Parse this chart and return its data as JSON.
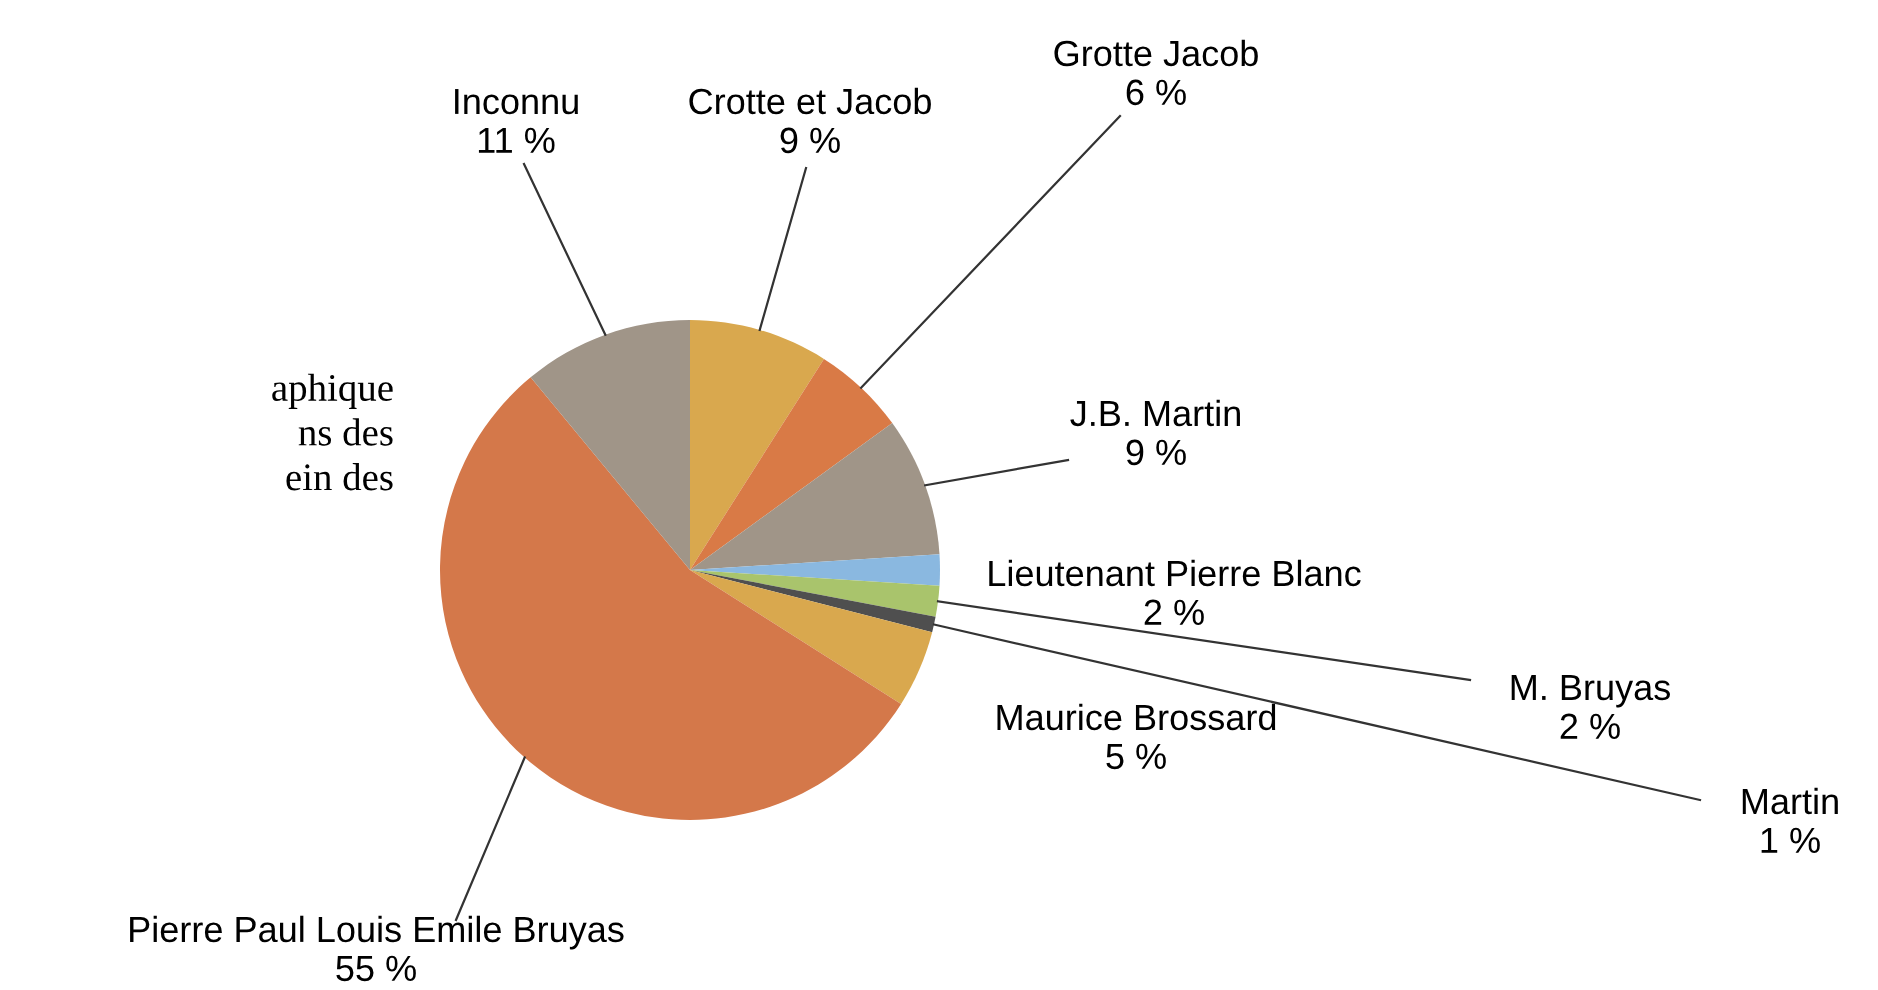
{
  "chart_data": {
    "type": "pie",
    "categories": [
      "Crotte et Jacob",
      "Grotte Jacob",
      "J.B. Martin",
      "Lieutenant Pierre Blanc",
      "M. Bruyas",
      "Martin",
      "Maurice Brossard",
      "Pierre Paul Louis Emile Bruyas",
      "Inconnu"
    ],
    "values": [
      9,
      6,
      9,
      2,
      2,
      1,
      5,
      55,
      11
    ],
    "value_labels": [
      "9 %",
      "6 %",
      "9 %",
      "2 %",
      "2 %",
      "1 %",
      "5 %",
      "55 %",
      "11 %"
    ],
    "colors": [
      "#d9a84e",
      "#d97a46",
      "#a09588",
      "#8ab8e0",
      "#a9c46c",
      "#4f4f4f",
      "#d9a84e",
      "#d4784a",
      "#a09588"
    ],
    "annotations": [
      "aphique\nns des\nein des"
    ],
    "legend": false
  }
}
